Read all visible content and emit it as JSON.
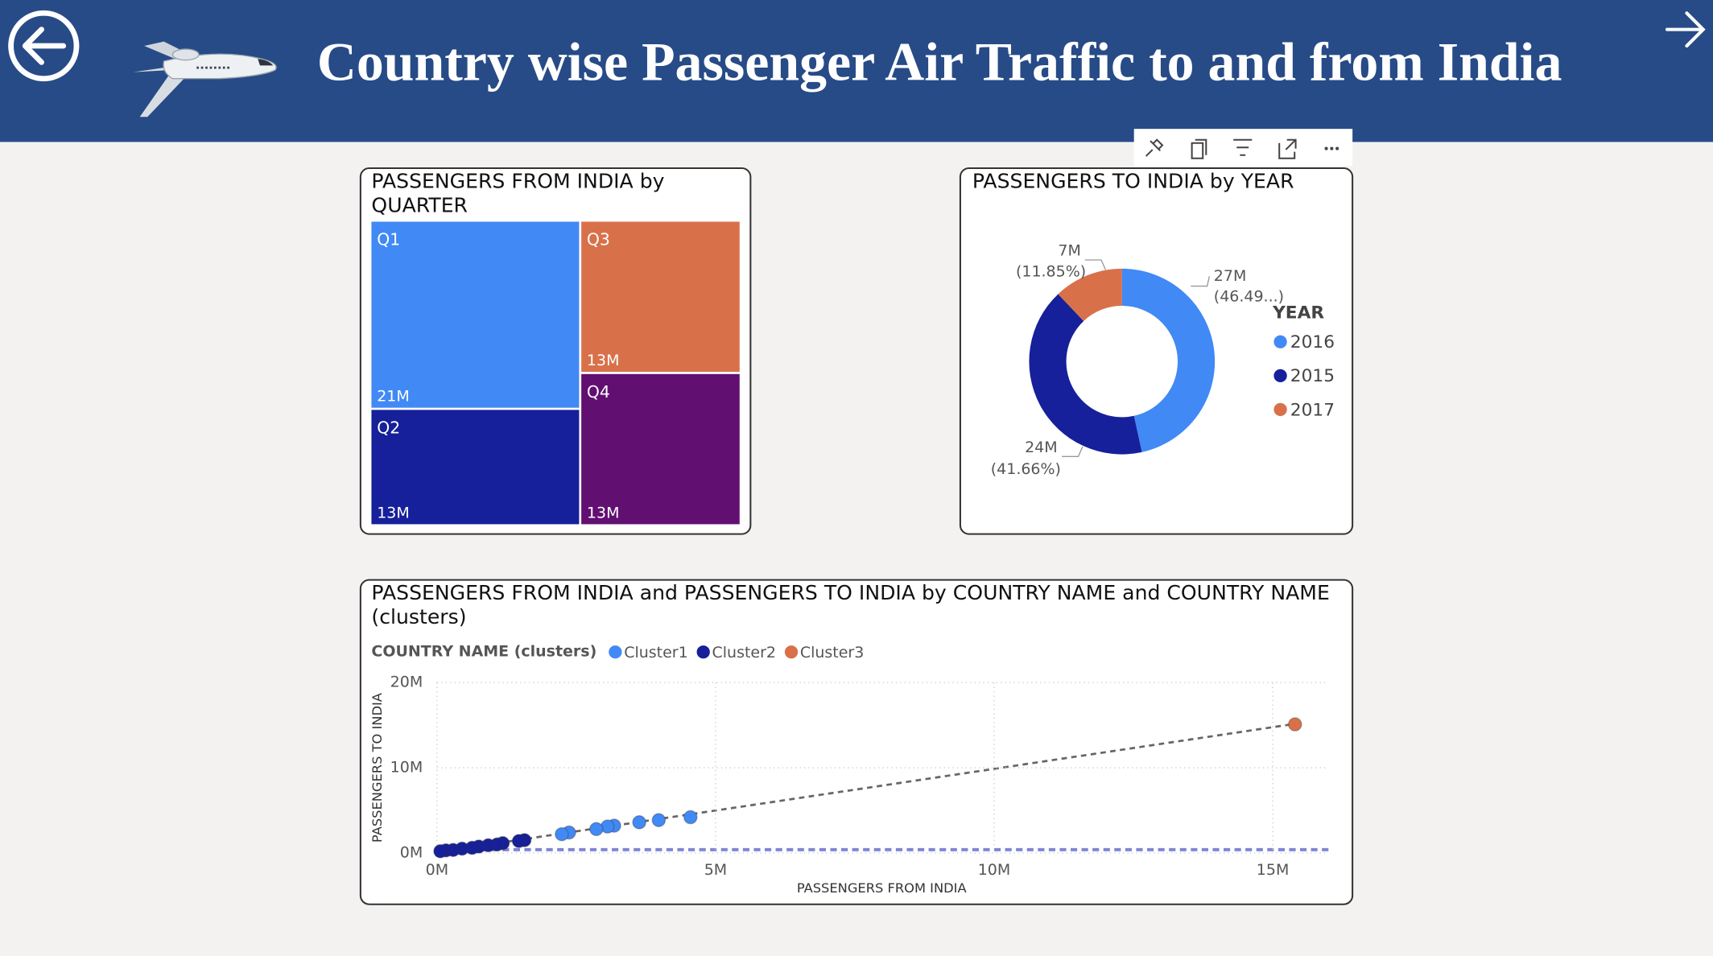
{
  "header": {
    "title": "Country wise Passenger Air Traffic to and from India"
  },
  "chart_data": [
    {
      "type": "treemap",
      "title": "PASSENGERS FROM INDIA by QUARTER",
      "categories": [
        "Q1",
        "Q2",
        "Q3",
        "Q4"
      ],
      "values": [
        21000000,
        13000000,
        13000000,
        13000000
      ],
      "value_labels": [
        "21M",
        "13M",
        "13M",
        "13M"
      ],
      "colors": [
        "#4189f5",
        "#16209a",
        "#d8714a",
        "#620f72"
      ]
    },
    {
      "type": "donut",
      "title": "PASSENGERS TO INDIA by YEAR",
      "legend_title": "YEAR",
      "categories": [
        "2016",
        "2015",
        "2017"
      ],
      "values": [
        27000000,
        24000000,
        7000000
      ],
      "value_labels": [
        "27M",
        "24M",
        "7M"
      ],
      "percent_labels": [
        "(46.49...)",
        "(41.66%)",
        "(11.85%)"
      ],
      "colors": [
        "#4189f5",
        "#16209a",
        "#d8714a"
      ]
    },
    {
      "type": "scatter",
      "title": "PASSENGERS FROM INDIA and PASSENGERS TO INDIA by COUNTRY NAME and COUNTRY NAME (clusters)",
      "legend_title": "COUNTRY NAME (clusters)",
      "x_label": "PASSENGERS FROM INDIA",
      "y_label": "PASSENGERS TO INDIA",
      "xlim": [
        0,
        16000000
      ],
      "xticks": [
        {
          "value": 0,
          "label": "0M"
        },
        {
          "value": 5000000,
          "label": "5M"
        },
        {
          "value": 10000000,
          "label": "10M"
        },
        {
          "value": 15000000,
          "label": "15M"
        }
      ],
      "ylim": [
        0,
        20000000
      ],
      "yticks": [
        {
          "value": 0,
          "label": "0M"
        },
        {
          "value": 10000000,
          "label": "10M"
        },
        {
          "value": 20000000,
          "label": "20M"
        }
      ],
      "grid": true,
      "series": [
        {
          "name": "Cluster1",
          "color": "#4189f5",
          "x": [
            4550000,
            3980000,
            3630000,
            3180000,
            3060000,
            2860000,
            2370000,
            2240000
          ],
          "y": [
            4200000,
            3850000,
            3600000,
            3200000,
            3100000,
            2800000,
            2400000,
            2200000
          ]
        },
        {
          "name": "Cluster2",
          "color": "#16209a",
          "x": [
            1570000,
            1470000,
            1180000,
            1080000,
            920000,
            750000,
            630000,
            450000,
            290000,
            160000,
            60000
          ],
          "y": [
            1500000,
            1400000,
            1150000,
            1000000,
            900000,
            750000,
            600000,
            500000,
            350000,
            300000,
            200000
          ]
        },
        {
          "name": "Cluster3",
          "color": "#d8714a",
          "x": [
            15400000
          ],
          "y": [
            15100000
          ]
        }
      ]
    }
  ]
}
